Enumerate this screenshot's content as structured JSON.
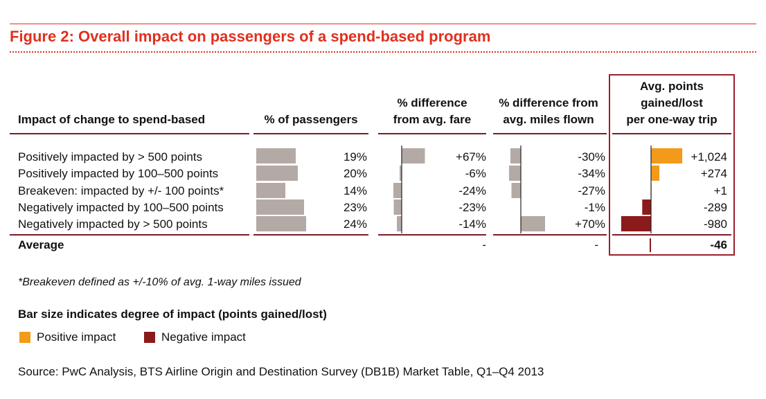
{
  "title": "Figure 2: Overall impact on passengers of a spend-based program",
  "colors": {
    "accent": "#e0301e",
    "rule": "#7b1c25",
    "grey_bar": "#b3aaa6",
    "positive": "#f29a1a",
    "negative": "#8b1a1a"
  },
  "headers": {
    "impact": "Impact of change to spend-based",
    "pct_passengers": "% of passengers",
    "fare": [
      "% difference",
      "from avg. fare"
    ],
    "miles": [
      "% difference from",
      "avg. miles flown"
    ],
    "points": [
      "Avg. points",
      "gained/lost",
      "per one-way trip"
    ]
  },
  "chart_data": {
    "type": "table",
    "rows": [
      {
        "label": "Positively impacted by > 500 points",
        "pct_passengers": 19,
        "pct_passengers_text": "19%",
        "fare_diff": 67,
        "fare_diff_text": "+67%",
        "miles_diff": -30,
        "miles_diff_text": "-30%",
        "points": 1024,
        "points_text": "+1,024"
      },
      {
        "label": "Positively impacted by 100–500 points",
        "pct_passengers": 20,
        "pct_passengers_text": "20%",
        "fare_diff": -6,
        "fare_diff_text": "-6%",
        "miles_diff": -34,
        "miles_diff_text": "-34%",
        "points": 274,
        "points_text": "+274"
      },
      {
        "label": "Breakeven: impacted by +/- 100 points*",
        "pct_passengers": 14,
        "pct_passengers_text": "14%",
        "fare_diff": -24,
        "fare_diff_text": "-24%",
        "miles_diff": -27,
        "miles_diff_text": "-27%",
        "points": 1,
        "points_text": "+1"
      },
      {
        "label": "Negatively impacted by 100–500 points",
        "pct_passengers": 23,
        "pct_passengers_text": "23%",
        "fare_diff": -23,
        "fare_diff_text": "-23%",
        "miles_diff": -1,
        "miles_diff_text": "-1%",
        "points": -289,
        "points_text": "-289"
      },
      {
        "label": "Negatively impacted by > 500 points",
        "pct_passengers": 24,
        "pct_passengers_text": "24%",
        "fare_diff": -14,
        "fare_diff_text": "-14%",
        "miles_diff": 70,
        "miles_diff_text": "+70%",
        "points": -980,
        "points_text": "-980"
      }
    ],
    "average": {
      "label": "Average",
      "fare_text": "-",
      "miles_text": "-",
      "points": -46,
      "points_text": "-46"
    }
  },
  "footnote": "*Breakeven defined as +/-10% of avg. 1-way miles issued",
  "legend": {
    "title": "Bar size indicates degree of impact (points gained/lost)",
    "positive": "Positive impact",
    "negative": "Negative impact"
  },
  "source": "Source: PwC Analysis, BTS Airline Origin and Destination Survey (DB1B) Market Table, Q1–Q4 2013"
}
